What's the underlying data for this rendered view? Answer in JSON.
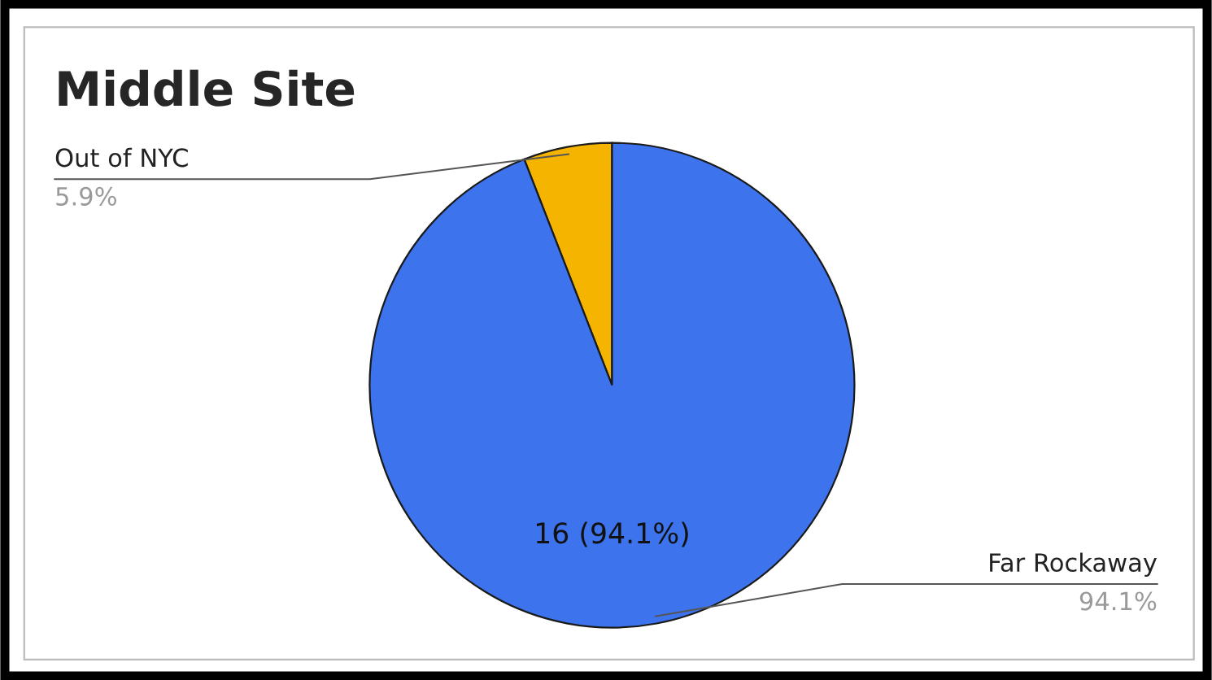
{
  "chart_data": {
    "type": "pie",
    "title": "Middle Site",
    "categories": [
      "Out of NYC",
      "Far Rockaway"
    ],
    "values": [
      5.9,
      94.1
    ],
    "colors": [
      "#f5b400",
      "#3d74ee"
    ],
    "value_labels": [
      "5.9%",
      "94.1%"
    ],
    "annotations": [
      "16 (94.1%)"
    ],
    "legend": false
  }
}
